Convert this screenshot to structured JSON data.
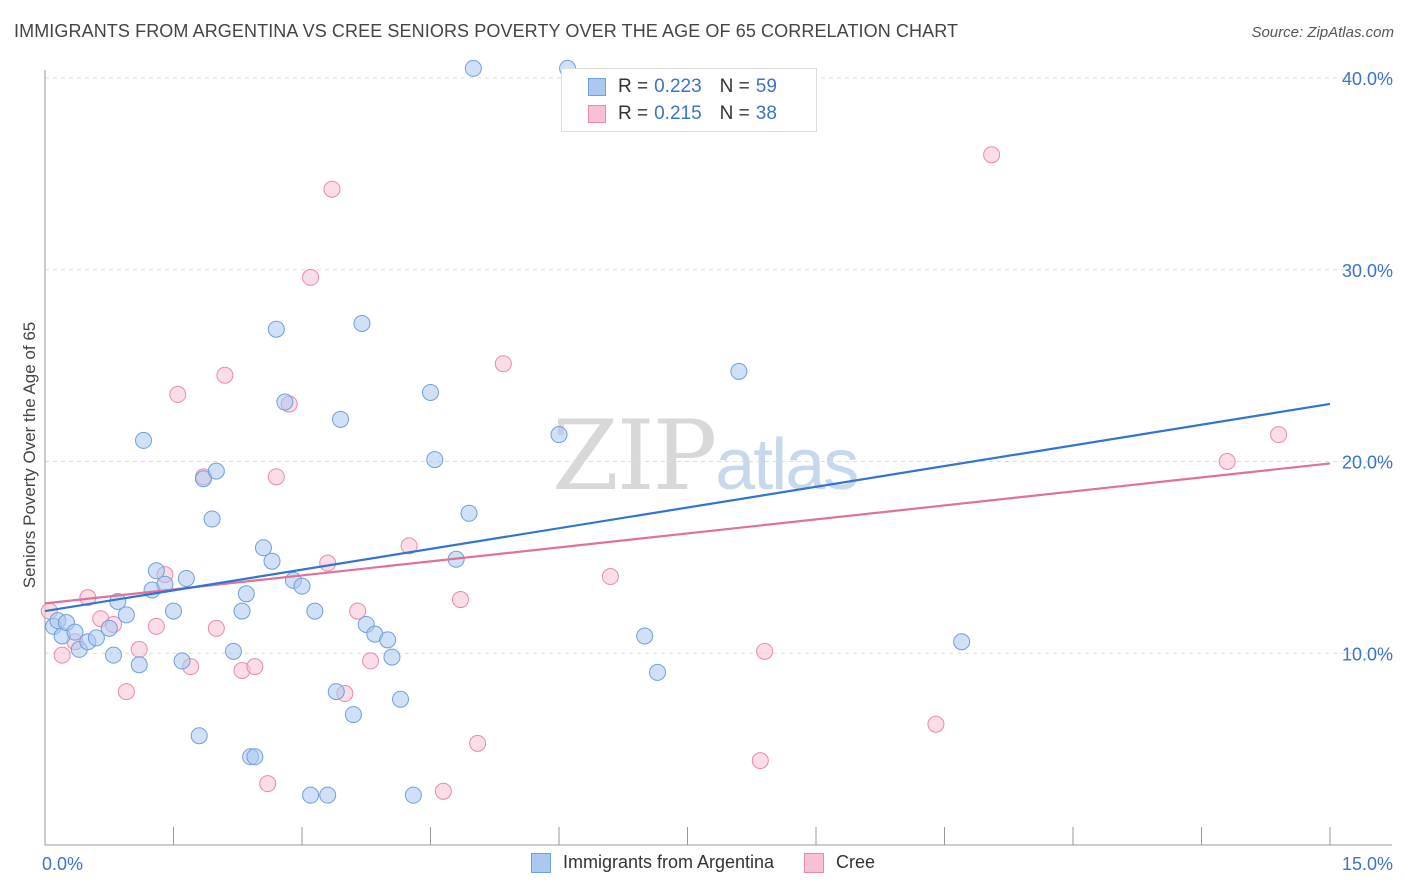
{
  "title": "IMMIGRANTS FROM ARGENTINA VS CREE SENIORS POVERTY OVER THE AGE OF 65 CORRELATION CHART",
  "source": "Source: ZipAtlas.com",
  "watermark": {
    "zip": "ZIP",
    "atlas": "atlas"
  },
  "legend": {
    "rows": [
      {
        "r_label": "R =",
        "r_value": "0.223",
        "n_label": "N =",
        "n_value": "59"
      },
      {
        "r_label": "R =",
        "r_value": "0.215",
        "n_label": "N =",
        "n_value": "38"
      }
    ]
  },
  "colors": {
    "blue_fill": "#aac8f0",
    "blue_stroke": "#6f9fdc",
    "blue_line": "#3274d0",
    "pink_fill": "#f7c1d3",
    "pink_stroke": "#e98aa9",
    "pink_line": "#e0719a",
    "tick_label": "#3b73c7",
    "grid": "#dcdcdc"
  },
  "chart_data": {
    "type": "scatter",
    "title": "IMMIGRANTS FROM ARGENTINA VS CREE SENIORS POVERTY OVER THE AGE OF 65 CORRELATION CHART",
    "xlabel": "",
    "ylabel": "Seniors Poverty Over the Age of 65",
    "xlim": [
      0,
      15
    ],
    "ylim": [
      0,
      40
    ],
    "x_tick_labels": [
      "0.0%",
      "15.0%"
    ],
    "y_ticks": [
      10,
      20,
      30,
      40
    ],
    "y_tick_labels": [
      "10.0%",
      "20.0%",
      "30.0%",
      "40.0%"
    ],
    "grid": true,
    "legend_position": "bottom",
    "series": [
      {
        "name": "Immigrants from Argentina",
        "color": "#aac8f0",
        "trend": [
          [
            0,
            12.2
          ],
          [
            15,
            23.0
          ]
        ],
        "points": [
          [
            0.1,
            11.4
          ],
          [
            0.15,
            11.7
          ],
          [
            0.2,
            10.9
          ],
          [
            0.25,
            11.6
          ],
          [
            0.35,
            11.1
          ],
          [
            0.4,
            10.2
          ],
          [
            0.5,
            10.6
          ],
          [
            0.6,
            10.8
          ],
          [
            0.75,
            11.3
          ],
          [
            0.8,
            9.9
          ],
          [
            0.85,
            12.7
          ],
          [
            0.95,
            12.0
          ],
          [
            1.1,
            9.4
          ],
          [
            1.15,
            21.1
          ],
          [
            1.25,
            13.3
          ],
          [
            1.3,
            14.3
          ],
          [
            1.4,
            13.6
          ],
          [
            1.5,
            12.2
          ],
          [
            1.6,
            9.6
          ],
          [
            1.65,
            13.9
          ],
          [
            1.8,
            5.7
          ],
          [
            1.85,
            19.1
          ],
          [
            1.95,
            17.0
          ],
          [
            2.0,
            19.5
          ],
          [
            2.2,
            10.1
          ],
          [
            2.3,
            12.2
          ],
          [
            2.35,
            13.1
          ],
          [
            2.4,
            4.6
          ],
          [
            2.45,
            4.6
          ],
          [
            2.55,
            15.5
          ],
          [
            2.65,
            14.8
          ],
          [
            2.7,
            26.9
          ],
          [
            2.8,
            23.1
          ],
          [
            2.9,
            13.8
          ],
          [
            3.0,
            13.5
          ],
          [
            3.1,
            2.6
          ],
          [
            3.15,
            12.2
          ],
          [
            3.3,
            2.6
          ],
          [
            3.4,
            8.0
          ],
          [
            3.45,
            22.2
          ],
          [
            3.6,
            6.8
          ],
          [
            3.7,
            27.2
          ],
          [
            3.75,
            11.5
          ],
          [
            3.85,
            11.0
          ],
          [
            4.0,
            10.7
          ],
          [
            4.05,
            9.8
          ],
          [
            4.15,
            7.6
          ],
          [
            4.3,
            2.6
          ],
          [
            4.5,
            23.6
          ],
          [
            4.55,
            20.1
          ],
          [
            4.8,
            14.9
          ],
          [
            4.95,
            17.3
          ],
          [
            5.0,
            40.5
          ],
          [
            6.0,
            21.4
          ],
          [
            6.1,
            40.5
          ],
          [
            7.0,
            10.9
          ],
          [
            7.15,
            9.0
          ],
          [
            8.1,
            24.7
          ],
          [
            10.7,
            10.6
          ]
        ]
      },
      {
        "name": "Cree",
        "color": "#f7c1d3",
        "trend": [
          [
            0,
            12.6
          ],
          [
            15,
            19.9
          ]
        ],
        "points": [
          [
            0.05,
            12.2
          ],
          [
            0.2,
            9.9
          ],
          [
            0.35,
            10.6
          ],
          [
            0.5,
            12.9
          ],
          [
            0.65,
            11.8
          ],
          [
            0.8,
            11.5
          ],
          [
            0.95,
            8.0
          ],
          [
            1.1,
            10.2
          ],
          [
            1.3,
            11.4
          ],
          [
            1.4,
            14.1
          ],
          [
            1.55,
            23.5
          ],
          [
            1.7,
            9.3
          ],
          [
            1.85,
            19.2
          ],
          [
            2.0,
            11.3
          ],
          [
            2.1,
            24.5
          ],
          [
            2.3,
            9.1
          ],
          [
            2.45,
            9.3
          ],
          [
            2.6,
            3.2
          ],
          [
            2.7,
            19.2
          ],
          [
            2.85,
            23.0
          ],
          [
            3.1,
            29.6
          ],
          [
            3.3,
            14.7
          ],
          [
            3.35,
            34.2
          ],
          [
            3.5,
            7.9
          ],
          [
            3.65,
            12.2
          ],
          [
            3.8,
            9.6
          ],
          [
            4.25,
            15.6
          ],
          [
            4.65,
            2.8
          ],
          [
            4.85,
            12.8
          ],
          [
            5.05,
            5.3
          ],
          [
            5.35,
            25.1
          ],
          [
            8.4,
            10.1
          ],
          [
            8.35,
            4.4
          ],
          [
            10.4,
            6.3
          ],
          [
            11.05,
            36.0
          ],
          [
            13.8,
            20.0
          ],
          [
            14.4,
            21.4
          ],
          [
            6.6,
            14.0
          ]
        ]
      }
    ]
  }
}
